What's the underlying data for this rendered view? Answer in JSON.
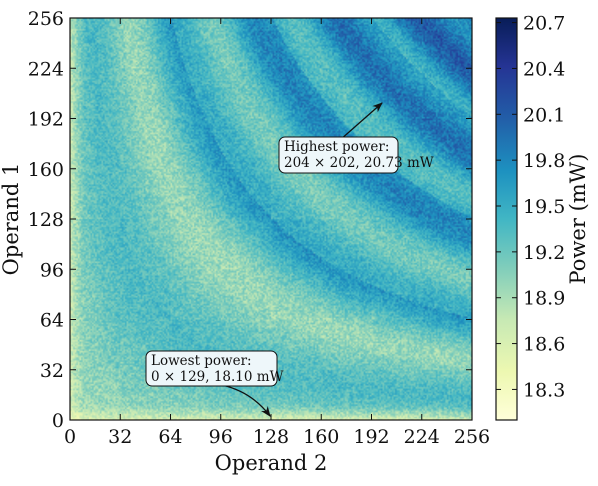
{
  "chart_data": {
    "type": "heatmap",
    "xlabel": "Operand 2",
    "ylabel": "Operand 1",
    "x_range": [
      0,
      256
    ],
    "y_range": [
      0,
      256
    ],
    "x_ticks": [
      "0",
      "32",
      "64",
      "96",
      "128",
      "160",
      "192",
      "224",
      "256"
    ],
    "y_ticks": [
      "0",
      "32",
      "64",
      "96",
      "128",
      "160",
      "192",
      "224",
      "256"
    ],
    "colorbar": {
      "label": "Power (mW)",
      "range": [
        18.1,
        20.73
      ],
      "ticks": [
        "18.3",
        "18.6",
        "18.9",
        "19.2",
        "19.5",
        "19.8",
        "20.1",
        "20.4",
        "20.7"
      ],
      "colormap_colors": [
        "#ffffd9",
        "#edf8b1",
        "#c7e9b4",
        "#7fcdbb",
        "#41b6c4",
        "#1d91c0",
        "#225ea8",
        "#253494",
        "#081d58"
      ]
    },
    "annotations": [
      {
        "name": "highest",
        "line1": "Highest power:",
        "line2": "204 × 202, 20.73 mW",
        "point": [
          199,
          204
        ]
      },
      {
        "name": "lowest",
        "line1": "Lowest power:",
        "line2": "0 × 129, 18.10 mW",
        "point": [
          129,
          0
        ]
      }
    ]
  }
}
